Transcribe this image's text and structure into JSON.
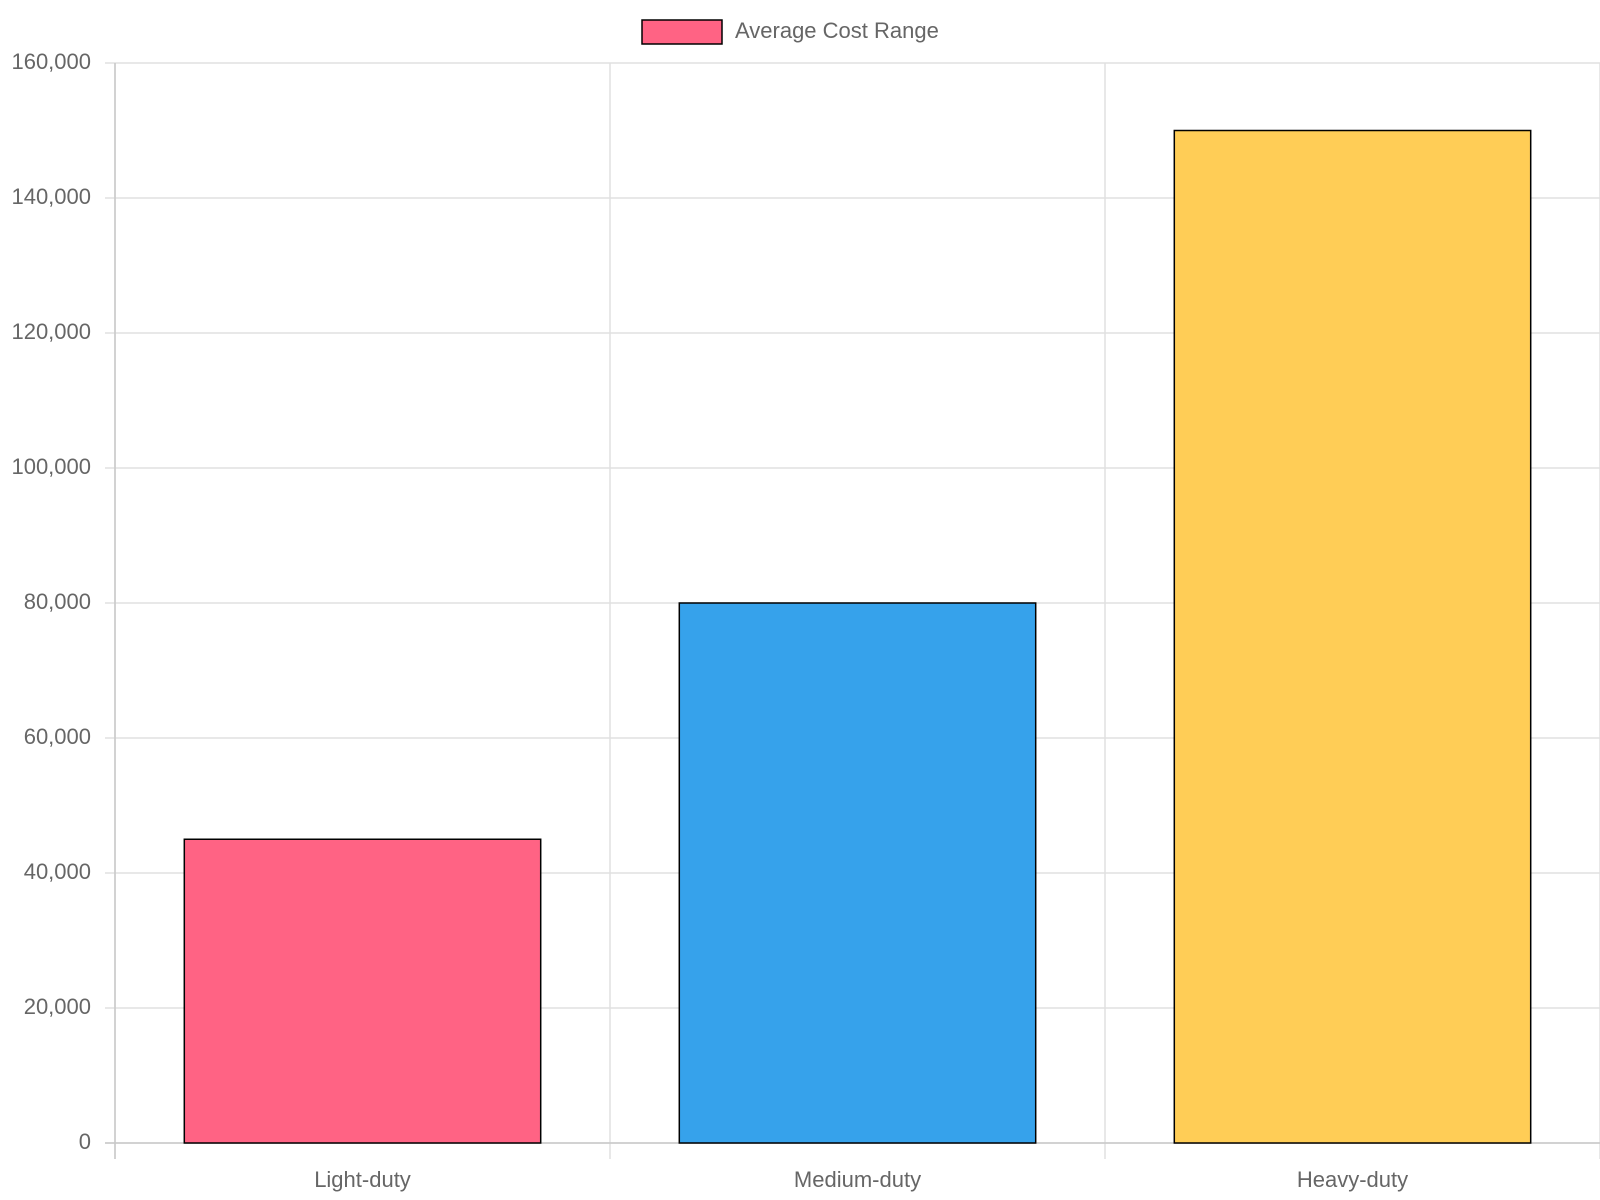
{
  "chart_data": {
    "type": "bar",
    "categories": [
      "Light-duty",
      "Medium-duty",
      "Heavy-duty"
    ],
    "series": [
      {
        "name": "Average Cost Range",
        "color": "#ff6384",
        "colors": [
          "#ff6384",
          "#36a2eb",
          "#ffcd56"
        ],
        "values": [
          45000,
          80000,
          150000
        ]
      }
    ],
    "ylim": [
      0,
      160000
    ],
    "yticks": [
      0,
      {
        "value": 20000,
        "label": "20,000"
      },
      {
        "value": 40000,
        "label": "40,000"
      },
      {
        "value": 60000,
        "label": "60,000"
      },
      {
        "value": 80000,
        "label": "80,000"
      },
      {
        "value": 100000,
        "label": "100,000"
      },
      {
        "value": 120000,
        "label": "120,000"
      },
      {
        "value": 140000,
        "label": "140,000"
      },
      {
        "value": 160000,
        "label": "160,000"
      }
    ],
    "grid": true,
    "legend": "top"
  }
}
